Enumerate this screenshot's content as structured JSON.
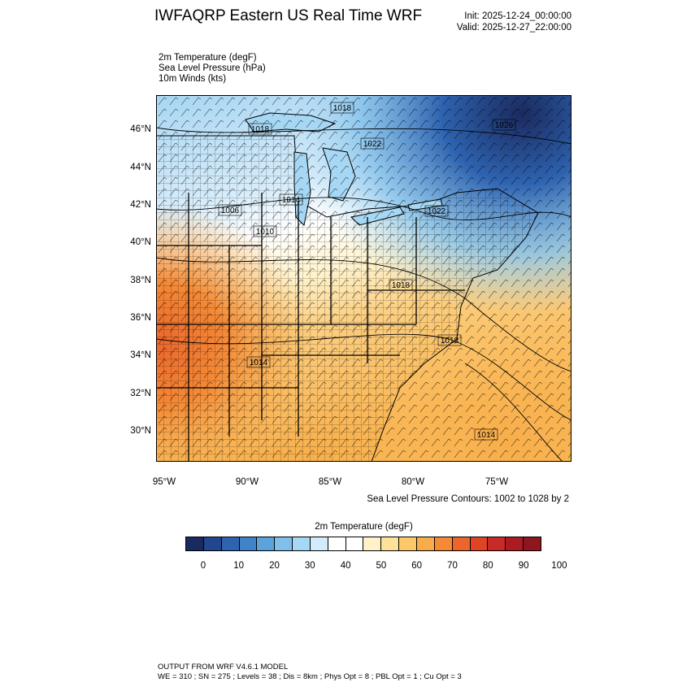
{
  "header": {
    "title": "IWFAQRP Eastern US Real Time WRF",
    "init": "Init: 2025-12-24_00:00:00",
    "valid": "Valid: 2025-12-27_22:00:00"
  },
  "fields": {
    "temperature": "2m Temperature   (degF)",
    "pressure": "Sea Level Pressure   (hPa)",
    "winds": "10m Winds   (kts)"
  },
  "map": {
    "lat_ticks": [
      "46°N",
      "44°N",
      "42°N",
      "40°N",
      "38°N",
      "36°N",
      "34°N",
      "32°N",
      "30°N"
    ],
    "lon_ticks": [
      "95°W",
      "90°W",
      "85°W",
      "80°W",
      "75°W"
    ],
    "pressure_labels": [
      "1018",
      "1018",
      "1022",
      "1026",
      "1014",
      "1006",
      "1010",
      "1022",
      "1018",
      "1018",
      "1014",
      "1014"
    ],
    "contours_note": "Sea Level Pressure Contours: 1002 to 1028 by 2"
  },
  "colorbar": {
    "title": "2m Temperature  (degF)",
    "colors": [
      "#1a2a5e",
      "#23478f",
      "#2e63b0",
      "#3f83c8",
      "#5aa3dc",
      "#7fbfea",
      "#a6d8f5",
      "#d3ecfb",
      "#ffffff",
      "#ffffff",
      "#fff2c8",
      "#fde39a",
      "#fcc86a",
      "#f8ad4a",
      "#f48a36",
      "#ec652b",
      "#df4427",
      "#c92a25",
      "#ad1b22",
      "#8f161c"
    ],
    "ticks": [
      "0",
      "10",
      "20",
      "30",
      "40",
      "50",
      "60",
      "70",
      "80",
      "90",
      "100"
    ]
  },
  "footer": {
    "line1": "OUTPUT FROM WRF V4.6.1 MODEL",
    "line2": "WE = 310 ; SN = 275 ; Levels = 38 ; Dis = 8km ; Phys Opt = 8 ; PBL Opt = 1 ; Cu Opt = 3"
  }
}
